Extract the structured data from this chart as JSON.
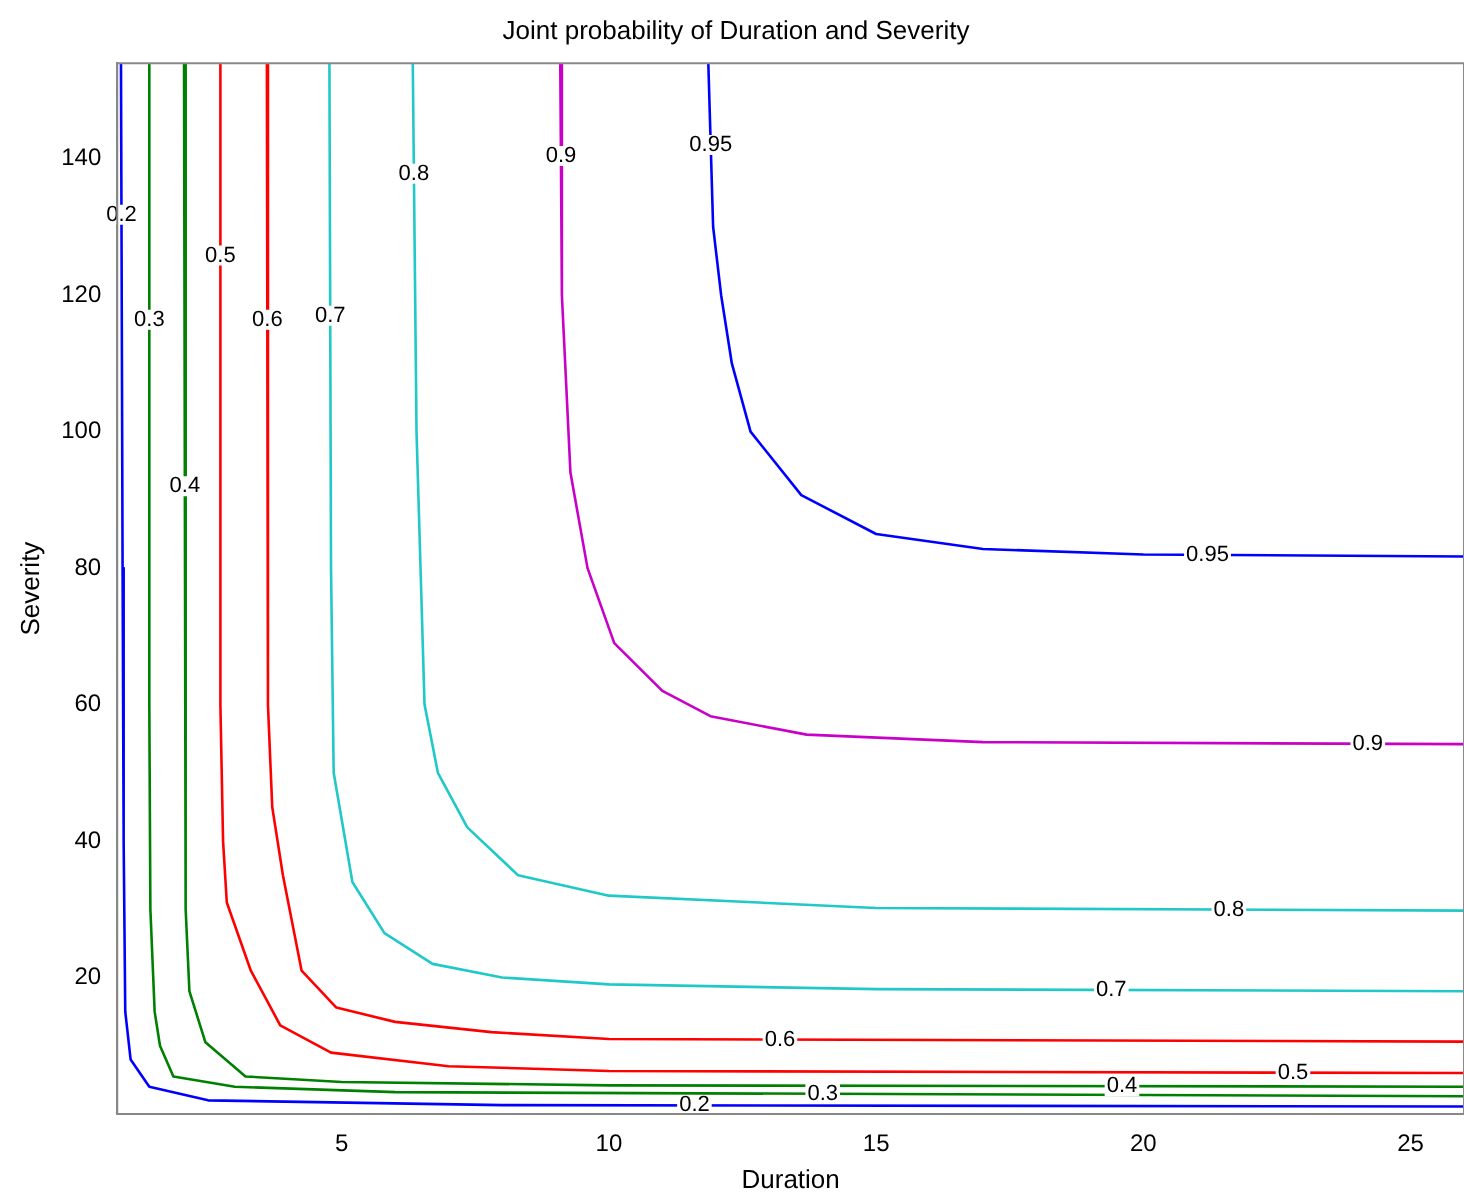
{
  "chart_data": {
    "type": "line",
    "title": "Joint probability of Duration and Severity",
    "xlabel": "Duration",
    "ylabel": "Severity",
    "xlim": [
      0.8,
      26
    ],
    "xticks": [
      5,
      10,
      15,
      20,
      25
    ],
    "ylim": [
      0,
      154
    ],
    "yticks": [
      20,
      40,
      60,
      80,
      100,
      120,
      140
    ],
    "grid": false,
    "legend": false,
    "marker": "none",
    "line_style": "solid",
    "series": [
      {
        "name": "0.2",
        "color": "#0000ff",
        "x": [
          0.87,
          0.9,
          0.92,
          0.95,
          1.05,
          1.4,
          2.5,
          8,
          26
        ],
        "values": [
          154,
          80,
          40,
          15,
          8,
          4,
          2,
          1.3,
          1.1
        ]
      },
      {
        "name": "0.3",
        "color": "#008000",
        "x": [
          1.4,
          1.4,
          1.42,
          1.5,
          1.6,
          1.85,
          3,
          6,
          26
        ],
        "values": [
          154,
          60,
          30,
          15,
          10,
          5.5,
          4,
          3.2,
          2.6
        ]
      },
      {
        "name": "0.4",
        "color": "#008000",
        "x": [
          2.05,
          2.08,
          2.15,
          2.45,
          3.2,
          5,
          10,
          26
        ],
        "values": [
          154,
          30,
          18,
          10.5,
          5.5,
          4.7,
          4.2,
          4
        ]
      },
      {
        "name": "0.5",
        "color": "#ff0000",
        "x": [
          2.73,
          2.73,
          2.78,
          2.85,
          3.3,
          3.85,
          4.8,
          7,
          10,
          26
        ],
        "values": [
          154,
          60,
          40,
          31,
          21,
          13,
          9,
          7,
          6.3,
          6
        ]
      },
      {
        "name": "0.6",
        "color": "#ff0000",
        "x": [
          3.6,
          3.62,
          3.7,
          3.9,
          4.25,
          4.9,
          6,
          7.8,
          10,
          26
        ],
        "values": [
          154,
          60,
          45,
          35,
          21,
          15.6,
          13.5,
          12,
          11,
          10.6
        ]
      },
      {
        "name": "0.7",
        "color": "#20c8c8",
        "x": [
          4.77,
          4.8,
          4.85,
          5.2,
          5.8,
          6.7,
          8,
          10,
          15,
          26
        ],
        "values": [
          154,
          80,
          50,
          34,
          26.5,
          22,
          20,
          19,
          18.3,
          18
        ]
      },
      {
        "name": "0.8",
        "color": "#20c8c8",
        "x": [
          6.33,
          6.4,
          6.55,
          6.8,
          7.35,
          8.3,
          10,
          15,
          26
        ],
        "values": [
          154,
          100,
          60,
          50,
          42,
          35,
          32,
          30.2,
          29.8
        ]
      },
      {
        "name": "0.9",
        "color": "#c800c8",
        "x": [
          9.09,
          9.12,
          9.28,
          9.6,
          10.1,
          11,
          11.9,
          13.7,
          17,
          26
        ],
        "values": [
          154,
          120,
          94,
          80,
          69,
          62,
          58.3,
          55.6,
          54.5,
          54.2
        ]
      },
      {
        "name": "0.95",
        "color": "#0000ff",
        "x": [
          11.86,
          11.95,
          12.1,
          12.3,
          12.65,
          13.6,
          15,
          17,
          20,
          26
        ],
        "values": [
          154,
          130,
          120,
          110,
          100,
          90.7,
          85,
          82.8,
          82,
          81.7
        ]
      }
    ]
  }
}
